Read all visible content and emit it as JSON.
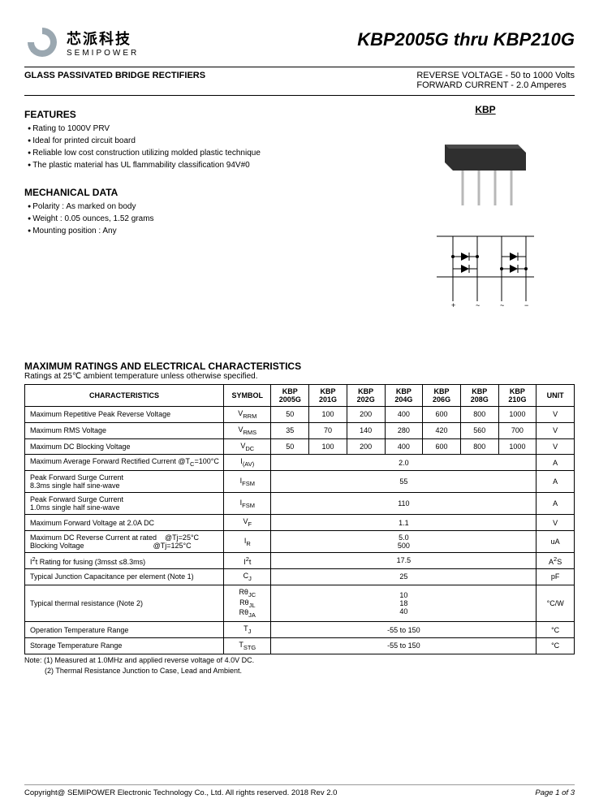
{
  "logo": {
    "chinese": "芯派科技",
    "english": "SEMIPOWER",
    "ring_color": "#9aa7b0",
    "inner_color": "#ffffff"
  },
  "header": {
    "title": "KBP2005G thru KBP210G",
    "sub_left": "GLASS PASSIVATED BRIDGE RECTIFIERS",
    "sub_right_line1": "REVERSE VOLTAGE  - 50 to 1000 Volts",
    "sub_right_line2": "FORWARD CURRENT - 2.0 Amperes"
  },
  "features": {
    "heading": "FEATURES",
    "items": [
      "Rating to 1000V PRV",
      "Ideal for printed circuit board",
      "Reliable low cost construction utilizing molded plastic technique",
      "The plastic material has UL flammability  classification 94V#0"
    ]
  },
  "mechanical": {
    "heading": "MECHANICAL DATA",
    "items": [
      "Polarity : As marked on body",
      "Weight : 0.05 ounces, 1.52 grams",
      "Mounting position : Any"
    ]
  },
  "package_label": "KBP",
  "package_svg": {
    "body_color": "#2f2f2f",
    "pin_color": "#b8b8b8"
  },
  "ratings": {
    "title": "MAXIMUM RATINGS AND ELECTRICAL CHARACTERISTICS",
    "subtitle": "Ratings at 25℃ ambient temperature unless otherwise specified.",
    "header_cols": [
      "CHARACTERISTICS",
      "SYMBOL",
      "KBP 2005G",
      "KBP 201G",
      "KBP 202G",
      "KBP 204G",
      "KBP 206G",
      "KBP 208G",
      "KBP 210G",
      "UNIT"
    ],
    "rows": [
      {
        "char": "Maximum Repetitive Peak Reverse Voltage",
        "sym": "V<sub>RRM</sub>",
        "vals": [
          "50",
          "100",
          "200",
          "400",
          "600",
          "800",
          "1000"
        ],
        "unit": "V"
      },
      {
        "char": "Maximum RMS Voltage",
        "sym": "V<sub>RMS</sub>",
        "vals": [
          "35",
          "70",
          "140",
          "280",
          "420",
          "560",
          "700"
        ],
        "unit": "V"
      },
      {
        "char": "Maximum DC Blocking Voltage",
        "sym": "V<sub>DC</sub>",
        "vals": [
          "50",
          "100",
          "200",
          "400",
          "600",
          "800",
          "1000"
        ],
        "unit": "V"
      },
      {
        "char": "Maximum Average Forward Rectified Current @T<sub>C</sub>=100°C",
        "sym": "I<sub>(AV)</sub>",
        "span": "2.0",
        "unit": "A"
      },
      {
        "char": "Peak Forward Surge Current<br>8.3ms single half sine-wave",
        "sym": "I<sub>FSM</sub>",
        "span": "55",
        "unit": "A"
      },
      {
        "char": "Peak Forward Surge Current<br>1.0ms single half sine-wave",
        "sym": "I<sub>FSM</sub>",
        "span": "110",
        "unit": "A"
      },
      {
        "char": "Maximum Forward Voltage at 2.0A DC",
        "sym": "V<sub>F</sub>",
        "span": "1.1",
        "unit": "V"
      },
      {
        "char": "Maximum DC Reverse Current at rated &nbsp;&nbsp;&nbsp;@Tj=25°C<br>Blocking Voltage&nbsp;&nbsp;&nbsp;&nbsp;&nbsp;&nbsp;&nbsp;&nbsp;&nbsp;&nbsp;&nbsp;&nbsp;&nbsp;&nbsp;&nbsp;&nbsp;&nbsp;&nbsp;&nbsp;&nbsp;&nbsp;&nbsp;&nbsp;&nbsp;&nbsp;&nbsp;&nbsp;&nbsp;&nbsp;&nbsp;&nbsp;&nbsp;&nbsp;&nbsp;@Tj=125°C",
        "sym": "I<sub>R</sub>",
        "span": "5.0<br>500",
        "unit": "uA"
      },
      {
        "char": "I<sup>2</sup>t Rating for fusing (3ms≤t ≤8.3ms)",
        "sym": "I<sup>2</sup>t",
        "span": "17.5",
        "unit": "A<sup>2</sup>S"
      },
      {
        "char": "Typical Junction Capacitance per element (Note 1)",
        "sym": "C<sub>J</sub>",
        "span": "25",
        "unit": "pF"
      },
      {
        "char": "Typical thermal resistance (Note 2)",
        "sym": "Rθ<sub>JC</sub><br>Rθ<sub>JL</sub><br>Rθ<sub>JA</sub>",
        "span": "10<br>18<br>40",
        "unit": "°C/W"
      },
      {
        "char": "Operation Temperature Range",
        "sym": "T<sub>J</sub>",
        "span": "-55 to 150",
        "unit": "°C"
      },
      {
        "char": "Storage Temperature Range",
        "sym": "T<sub>STG</sub>",
        "span": "-55 to 150",
        "unit": "°C"
      }
    ],
    "note1": "Note: (1) Measured at 1.0MHz and applied reverse voltage of 4.0V DC.",
    "note2": "          (2) Thermal Resistance Junction to Case, Lead and Ambient."
  },
  "footer": {
    "copyright": "Copyright@ SEMIPOWER Electronic Technology Co., Ltd.  All rights reserved.  2018  Rev  2.0",
    "page": "Page 1 of 3"
  }
}
